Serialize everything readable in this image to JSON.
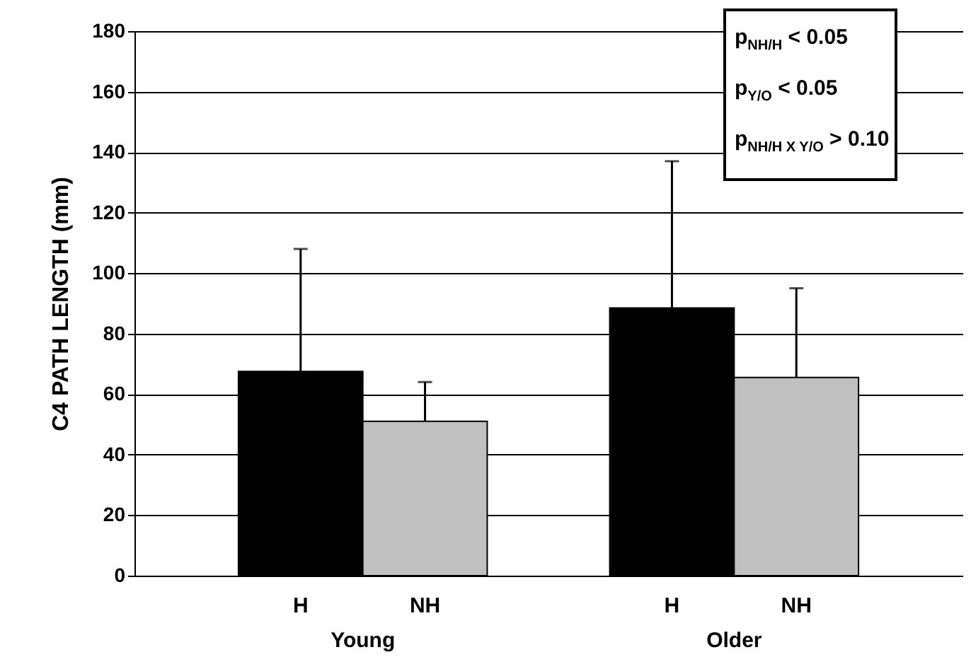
{
  "chart_data": {
    "type": "bar",
    "ylabel": "C4 PATH LENGTH (mm)",
    "categories": [
      "Young",
      "Older"
    ],
    "series": [
      {
        "name": "H",
        "color": "#000000",
        "values": [
          67.5,
          88.5
        ],
        "errors": [
          [
            67.5,
            108
          ],
          [
            88.5,
            137
          ]
        ]
      },
      {
        "name": "NH",
        "color": "#c0c0c0",
        "values": [
          51,
          65.5
        ],
        "errors": [
          [
            51,
            64
          ],
          [
            65.5,
            95
          ]
        ]
      }
    ],
    "ylim": [
      0,
      180
    ],
    "yticks": [
      0,
      20,
      40,
      60,
      80,
      100,
      120,
      140,
      160,
      180
    ],
    "grid": "y",
    "legend": false,
    "annotations": [
      "p$_{NH/H}$ < 0.05",
      "p$_{Y/O}$ < 0.05",
      "p$_{NH/H X Y/O}$ > 0.10"
    ]
  }
}
